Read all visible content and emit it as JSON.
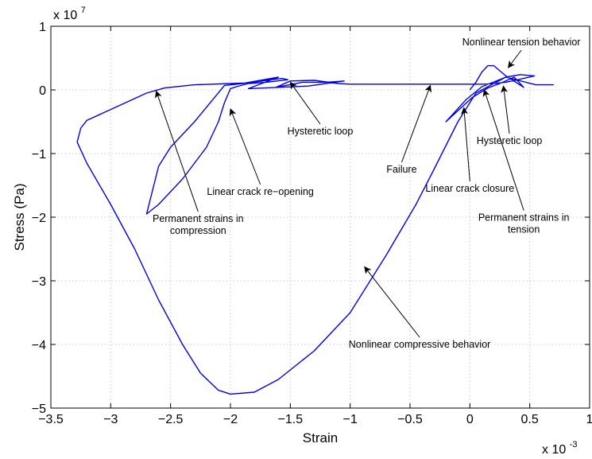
{
  "chart_data": {
    "type": "line",
    "xlabel": "Strain",
    "ylabel": "Stress (Pa)",
    "x_multiplier": "x 10",
    "x_exponent": "-3",
    "y_multiplier": "x 10",
    "y_exponent": "7",
    "xlim": [
      -3.5,
      1
    ],
    "ylim": [
      -5,
      1
    ],
    "x_ticks": [
      -3.5,
      -3,
      -2.5,
      -2,
      -1.5,
      -1,
      -0.5,
      0,
      0.5,
      1
    ],
    "x_tick_labels": [
      "−3.5",
      "−3",
      "−2.5",
      "−2",
      "−1.5",
      "−1",
      "−0.5",
      "0",
      "0.5",
      "1"
    ],
    "y_ticks": [
      -5,
      -4,
      -3,
      -2,
      -1,
      0,
      1
    ],
    "y_tick_labels": [
      "−5",
      "−4",
      "−3",
      "−2",
      "−1",
      "0",
      "1"
    ],
    "grid": true,
    "series": [
      {
        "color": "#0000ee",
        "points": [
          [
            0,
            0
          ],
          [
            0.05,
            0.12
          ],
          [
            0.1,
            0.28
          ],
          [
            0.15,
            0.38
          ],
          [
            0.2,
            0.38
          ],
          [
            0.25,
            0.3
          ],
          [
            0.3,
            0.22
          ],
          [
            0.35,
            0.16
          ],
          [
            0.4,
            0.1
          ],
          [
            0.45,
            0.04
          ],
          [
            0.37,
            0.2
          ],
          [
            0.25,
            0.1
          ],
          [
            0.15,
            0.03
          ],
          [
            0.08,
            -0.05
          ],
          [
            0.02,
            -0.12
          ],
          [
            -0.2,
            -0.5
          ],
          [
            -0.03,
            -0.15
          ],
          [
            0.1,
            0.05
          ],
          [
            0.3,
            0.2
          ],
          [
            0.42,
            0.24
          ],
          [
            0.54,
            0.22
          ],
          [
            0.4,
            0.16
          ],
          [
            0.3,
            0.12
          ],
          [
            0.2,
            0.1
          ],
          [
            0.1,
            0.09
          ],
          [
            -0.3,
            0.09
          ],
          [
            -1.0,
            0.09
          ],
          [
            -1.1,
            0.1
          ],
          [
            -1.3,
            0.15
          ],
          [
            -1.5,
            0.14
          ],
          [
            -1.62,
            0.04
          ],
          [
            -1.4,
            0.12
          ],
          [
            -1.2,
            0.12
          ],
          [
            -1.05,
            0.14
          ],
          [
            -1.35,
            0.06
          ],
          [
            -1.6,
            0.04
          ],
          [
            -1.85,
            0.02
          ],
          [
            -1.6,
            0.2
          ],
          [
            -1.9,
            0.1
          ],
          [
            -2.05,
            0.07
          ],
          [
            -2.3,
            -0.5
          ],
          [
            -2.5,
            -0.9
          ],
          [
            -2.6,
            -1.2
          ],
          [
            -2.7,
            -1.95
          ],
          [
            -2.6,
            -1.8
          ],
          [
            -2.4,
            -1.4
          ],
          [
            -2.2,
            -0.9
          ],
          [
            -2.1,
            -0.5
          ],
          [
            -2.05,
            -0.2
          ],
          [
            -2.0,
            0.02
          ],
          [
            -1.95,
            0.05
          ],
          [
            -1.85,
            0.1
          ],
          [
            -1.7,
            0.12
          ],
          [
            -1.52,
            0.16
          ],
          [
            -1.57,
            0.18
          ],
          [
            -1.7,
            0.15
          ],
          [
            -1.85,
            0.11
          ],
          [
            -2.0,
            0.1
          ],
          [
            -2.3,
            0.08
          ],
          [
            -2.55,
            0.03
          ],
          [
            -2.7,
            -0.05
          ],
          [
            -3.2,
            -0.48
          ],
          [
            -3.25,
            -0.6
          ],
          [
            -3.28,
            -0.82
          ],
          [
            -3.2,
            -1.15
          ],
          [
            -3.0,
            -1.8
          ],
          [
            -2.8,
            -2.5
          ],
          [
            -2.6,
            -3.3
          ],
          [
            -2.4,
            -4.0
          ],
          [
            -2.25,
            -4.45
          ],
          [
            -2.1,
            -4.72
          ],
          [
            -2.0,
            -4.78
          ],
          [
            -1.8,
            -4.75
          ],
          [
            -1.6,
            -4.55
          ],
          [
            -1.3,
            -4.1
          ],
          [
            -1.0,
            -3.5
          ],
          [
            -0.7,
            -2.6
          ],
          [
            -0.45,
            -1.8
          ],
          [
            -0.3,
            -1.25
          ],
          [
            -0.1,
            -0.5
          ],
          [
            0.05,
            -0.05
          ],
          [
            0.3,
            0.2
          ],
          [
            0.55,
            0.08
          ],
          [
            0.7,
            0.08
          ]
        ]
      }
    ],
    "annotations": [
      {
        "text": "Nonlinear tension behavior",
        "lines": [
          "Nonlinear tension behavior"
        ],
        "point_x": 0.32,
        "point_y": 0.35,
        "anchor_x": 0.43,
        "anchor_y": 0.75
      },
      {
        "text": "Hysteretic loop",
        "lines": [
          "Hysteretic loop"
        ],
        "point_x": -1.5,
        "point_y": 0.12,
        "anchor_x": -1.25,
        "anchor_y": -0.65
      },
      {
        "text": "Failure",
        "lines": [
          "Failure"
        ],
        "point_x": -0.33,
        "point_y": 0.07,
        "anchor_x": -0.57,
        "anchor_y": -1.25
      },
      {
        "text": "Hysteretic loop",
        "lines": [
          "Hysteretic loop"
        ],
        "point_x": 0.28,
        "point_y": 0.06,
        "anchor_x": 0.33,
        "anchor_y": -0.8
      },
      {
        "text": "Linear crack re−opening",
        "lines": [
          "Linear crack re−opening"
        ],
        "point_x": -2.0,
        "point_y": -0.3,
        "anchor_x": -1.75,
        "anchor_y": -1.6
      },
      {
        "text": "Linear crack closure",
        "lines": [
          "Linear crack closure"
        ],
        "point_x": -0.05,
        "point_y": -0.28,
        "anchor_x": 0.0,
        "anchor_y": -1.55
      },
      {
        "text": "Permanent strains in compression",
        "lines": [
          "Permanent strains in",
          "compression"
        ],
        "point_x": -2.62,
        "point_y": -0.02,
        "anchor_x": -2.27,
        "anchor_y": -2.12
      },
      {
        "text": "Permanent strains in tension",
        "lines": [
          "Permanent strains in",
          "tension"
        ],
        "point_x": 0.12,
        "point_y": 0.0,
        "anchor_x": 0.45,
        "anchor_y": -2.1
      },
      {
        "text": "Nonlinear compressive behavior",
        "lines": [
          "Nonlinear compressive behavior"
        ],
        "point_x": -0.88,
        "point_y": -2.78,
        "anchor_x": -0.42,
        "anchor_y": -4.0
      }
    ]
  }
}
